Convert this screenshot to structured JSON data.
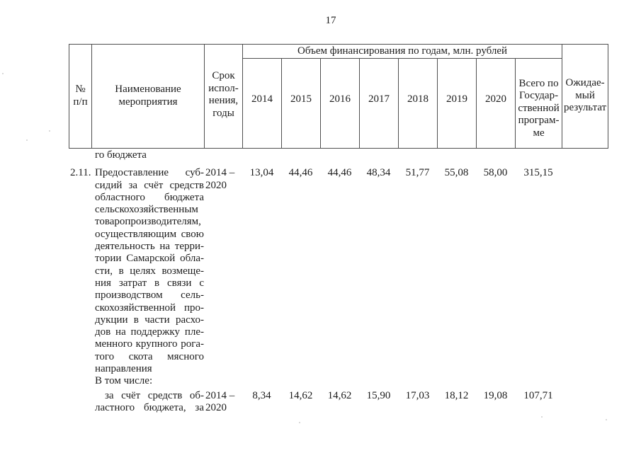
{
  "page": {
    "number": "17"
  },
  "colors": {
    "ink": "#1c1c1c",
    "border": "#4f4f4f",
    "background": "#ffffff"
  },
  "table": {
    "header": {
      "num": "№\nп/п",
      "name": "Наименование\nмероприятия",
      "term": "Срок\nиспол-\nнения,\nгоды",
      "finance_span": "Объем финансирования по годам, млн. рублей",
      "years": [
        "2014",
        "2015",
        "2016",
        "2017",
        "2018",
        "2019",
        "2020"
      ],
      "total": "Всего по\nГосудар-\nственной\nпрограм-\nме",
      "result": "Ожидае-\nмый\nрезультат"
    },
    "rows": [
      {
        "num": "",
        "name_lines": [
          {
            "t": "го бюджета",
            "left": true
          }
        ],
        "term": "",
        "values": [
          "",
          "",
          "",
          "",
          "",
          "",
          ""
        ],
        "total": "",
        "result": ""
      },
      {
        "num": "2.11.",
        "name_lines": [
          {
            "t": "Предоставление суб-"
          },
          {
            "t": "сидий за счёт средств"
          },
          {
            "t": "областного бюджета"
          },
          {
            "t": "сельскохозяйственным"
          },
          {
            "t": "товаропроизводителям,"
          },
          {
            "t": "осуществляющим свою"
          },
          {
            "t": "деятельность на терри-"
          },
          {
            "t": "тории Самарской обла-"
          },
          {
            "t": "сти, в целях возмеще-"
          },
          {
            "t": "ния затрат в связи с"
          },
          {
            "t": "производством сель-"
          },
          {
            "t": "скохозяйственной про-"
          },
          {
            "t": "дукции в части расхо-"
          },
          {
            "t": "дов на поддержку пле-"
          },
          {
            "t": "менного крупного рога-"
          },
          {
            "t": "того скота мясного"
          },
          {
            "t": "направления",
            "left": true
          },
          {
            "t": "В том числе:",
            "left": true
          }
        ],
        "term": "2014 –\n2020",
        "values": [
          "13,04",
          "44,46",
          "44,46",
          "48,34",
          "51,77",
          "55,08",
          "58,00"
        ],
        "total": "315,15",
        "result": ""
      },
      {
        "num": "",
        "name_lines": [
          {
            "t": "за счёт средств об-",
            "indent": true
          },
          {
            "t": "ластного бюджета, за"
          }
        ],
        "term": "2014 –\n2020",
        "values": [
          "8,34",
          "14,62",
          "14,62",
          "15,90",
          "17,03",
          "18,12",
          "19,08"
        ],
        "total": "107,71",
        "result": ""
      }
    ]
  }
}
